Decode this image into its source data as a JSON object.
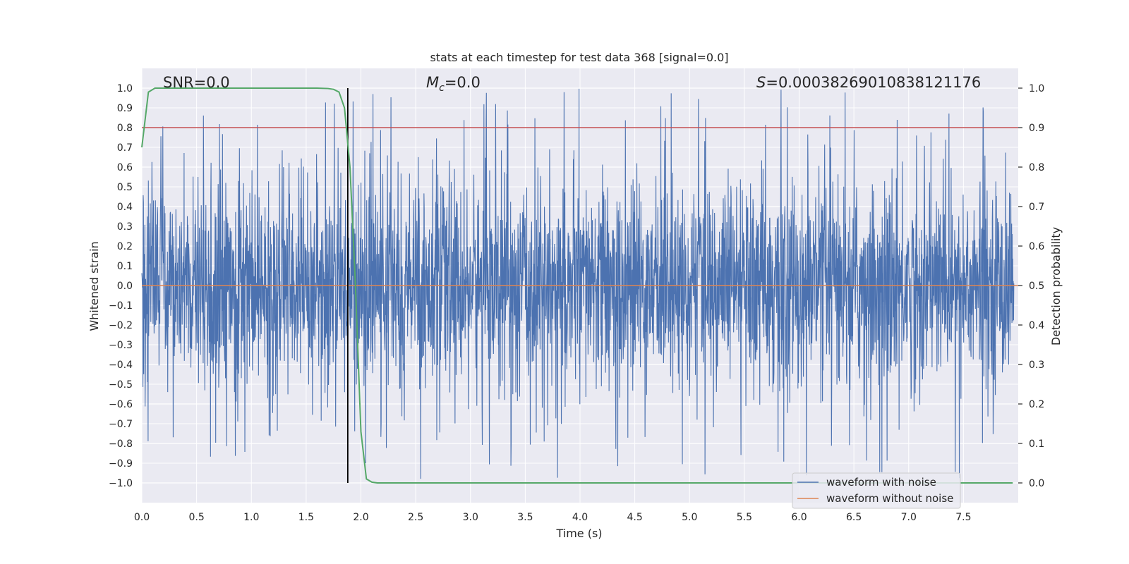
{
  "chart_data": {
    "type": "line",
    "title": "stats at each timestep for test data 368 [signal=0.0]",
    "xlabel": "Time (s)",
    "ylabel": "Whitened strain",
    "ylabel_right": "Detection probability",
    "xlim": [
      0.0,
      8.0
    ],
    "ylim": [
      -1.1,
      1.1
    ],
    "ylim_right": [
      -0.05,
      1.05
    ],
    "xticks": [
      "0.0",
      "0.5",
      "1.0",
      "1.5",
      "2.0",
      "2.5",
      "3.0",
      "3.5",
      "4.0",
      "4.5",
      "5.0",
      "5.5",
      "6.0",
      "6.5",
      "7.0",
      "7.5"
    ],
    "yticks": [
      "1.0",
      "0.9",
      "0.8",
      "0.7",
      "0.6",
      "0.5",
      "0.4",
      "0.3",
      "0.2",
      "0.1",
      "0.0",
      "-0.1",
      "-0.2",
      "-0.3",
      "-0.4",
      "-0.5",
      "-0.6",
      "-0.7",
      "-0.8",
      "-0.9",
      "-1.0"
    ],
    "yticks_right": [
      "1.0",
      "0.9",
      "0.8",
      "0.7",
      "0.6",
      "0.5",
      "0.4",
      "0.3",
      "0.2",
      "0.1",
      "0.0"
    ],
    "annotations": {
      "snr": "SNR=0.0",
      "mc_symbol": "M",
      "mc_sub": "c",
      "mc_value": "=0.0",
      "s_symbol": "S",
      "s_value": "=0.00038269010838121176"
    },
    "threshold": 0.9,
    "peak_marker_time": 1.88,
    "series": [
      {
        "name": "waveform with noise",
        "color": "#4c72b0",
        "axis": "left",
        "kind": "noise",
        "amplitude_envelope": 1.0
      },
      {
        "name": "waveform without noise",
        "color": "#dd8452",
        "axis": "left",
        "kind": "flat",
        "value": 0.0
      },
      {
        "name": "detection probability",
        "color": "#55a868",
        "axis": "right",
        "x": [
          0.0,
          0.06,
          0.12,
          0.3,
          0.6,
          1.0,
          1.4,
          1.6,
          1.7,
          1.75,
          1.8,
          1.85,
          1.9,
          1.95,
          2.0,
          2.05,
          2.1,
          2.15,
          2.4,
          3.0,
          4.0,
          5.0,
          6.0,
          7.0,
          7.95
        ],
        "y": [
          0.85,
          0.99,
          1.0,
          1.0,
          1.0,
          1.0,
          1.0,
          1.0,
          0.999,
          0.997,
          0.99,
          0.95,
          0.8,
          0.5,
          0.13,
          0.01,
          0.002,
          0.0,
          0.0,
          0.0,
          0.0,
          0.0,
          0.0,
          0.0,
          0.0
        ]
      }
    ],
    "threshold_color": "#c44e52",
    "marker_color": "#000000",
    "legend": [
      "waveform with noise",
      "waveform without noise"
    ],
    "legend_position": "lower-right",
    "grid": true,
    "background": "#eaeaf2"
  }
}
